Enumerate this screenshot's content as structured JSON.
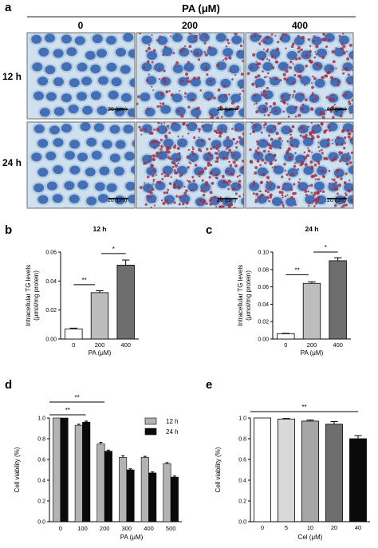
{
  "panels": {
    "a": {
      "letter": "a",
      "header": "PA (μM)",
      "columns": [
        "0",
        "200",
        "400"
      ],
      "rows": [
        "12 h",
        "24 h"
      ],
      "scale_bar": "20 (μm)",
      "colors": {
        "cell_blue": "#2f5fae",
        "lipid_red": "#a0304a",
        "background": "#cfe0ee"
      }
    },
    "b": {
      "letter": "b"
    },
    "c": {
      "letter": "c"
    },
    "d": {
      "letter": "d"
    },
    "e": {
      "letter": "e"
    }
  },
  "chart_data": [
    {
      "id": "b",
      "type": "bar",
      "title": "12 h",
      "xlabel": "PA (μM)",
      "ylabel": "Intracellular TG levels (μmol/mg protein)",
      "categories": [
        "0",
        "200",
        "400"
      ],
      "values": [
        0.007,
        0.032,
        0.051
      ],
      "errors": [
        0.0005,
        0.0013,
        0.0035
      ],
      "colors": [
        "#ffffff",
        "#bdbdbd",
        "#6e6e6e"
      ],
      "ylim": [
        0,
        0.06
      ],
      "yticks": [
        "0.00",
        "0.02",
        "0.04",
        "0.06"
      ],
      "annotations": [
        "**",
        "*"
      ]
    },
    {
      "id": "c",
      "type": "bar",
      "title": "24 h",
      "xlabel": "PA (μM)",
      "ylabel": "Intracellular TG levels (μmol/mg protein)",
      "categories": [
        "0",
        "200",
        "400"
      ],
      "values": [
        0.006,
        0.064,
        0.09
      ],
      "errors": [
        0.0005,
        0.0018,
        0.0035
      ],
      "colors": [
        "#ffffff",
        "#bdbdbd",
        "#6e6e6e"
      ],
      "ylim": [
        0,
        0.1
      ],
      "yticks": [
        "0.00",
        "0.02",
        "0.04",
        "0.06",
        "0.08",
        "0.10"
      ],
      "annotations": [
        "**",
        "*"
      ]
    },
    {
      "id": "d",
      "type": "bar",
      "xlabel": "PA (μM)",
      "ylabel": "Cell viability (%)",
      "categories": [
        "0",
        "100",
        "200",
        "300",
        "400",
        "500"
      ],
      "series": [
        {
          "name": "12 h",
          "values": [
            1.0,
            0.93,
            0.75,
            0.62,
            0.62,
            0.56
          ],
          "errors": [
            0,
            0.01,
            0.015,
            0.015,
            0.01,
            0.01
          ],
          "color": "#b3b3b3"
        },
        {
          "name": "24 h",
          "values": [
            1.0,
            0.96,
            0.68,
            0.5,
            0.47,
            0.43
          ],
          "errors": [
            0,
            0.01,
            0.01,
            0.01,
            0.01,
            0.01
          ],
          "color": "#0a0a0a"
        }
      ],
      "ylim": [
        0,
        1.0
      ],
      "yticks": [
        "0.0",
        "0.2",
        "0.4",
        "0.6",
        "0.8",
        "1.0"
      ],
      "legend": "top-right",
      "annotations": [
        "**",
        "**"
      ]
    },
    {
      "id": "e",
      "type": "bar",
      "xlabel": "Cel (μM)",
      "ylabel": "Cell viability (%)",
      "categories": [
        "0",
        "5",
        "10",
        "20",
        "40"
      ],
      "values": [
        1.0,
        0.99,
        0.97,
        0.94,
        0.8
      ],
      "errors": [
        0,
        0.005,
        0.01,
        0.025,
        0.03
      ],
      "colors": [
        "#ffffff",
        "#d9d9d9",
        "#a6a6a6",
        "#6e6e6e",
        "#0a0a0a"
      ],
      "ylim": [
        0,
        1.0
      ],
      "yticks": [
        "0.0",
        "0.2",
        "0.4",
        "0.6",
        "0.8",
        "1.0"
      ],
      "annotations": [
        "**"
      ]
    }
  ]
}
